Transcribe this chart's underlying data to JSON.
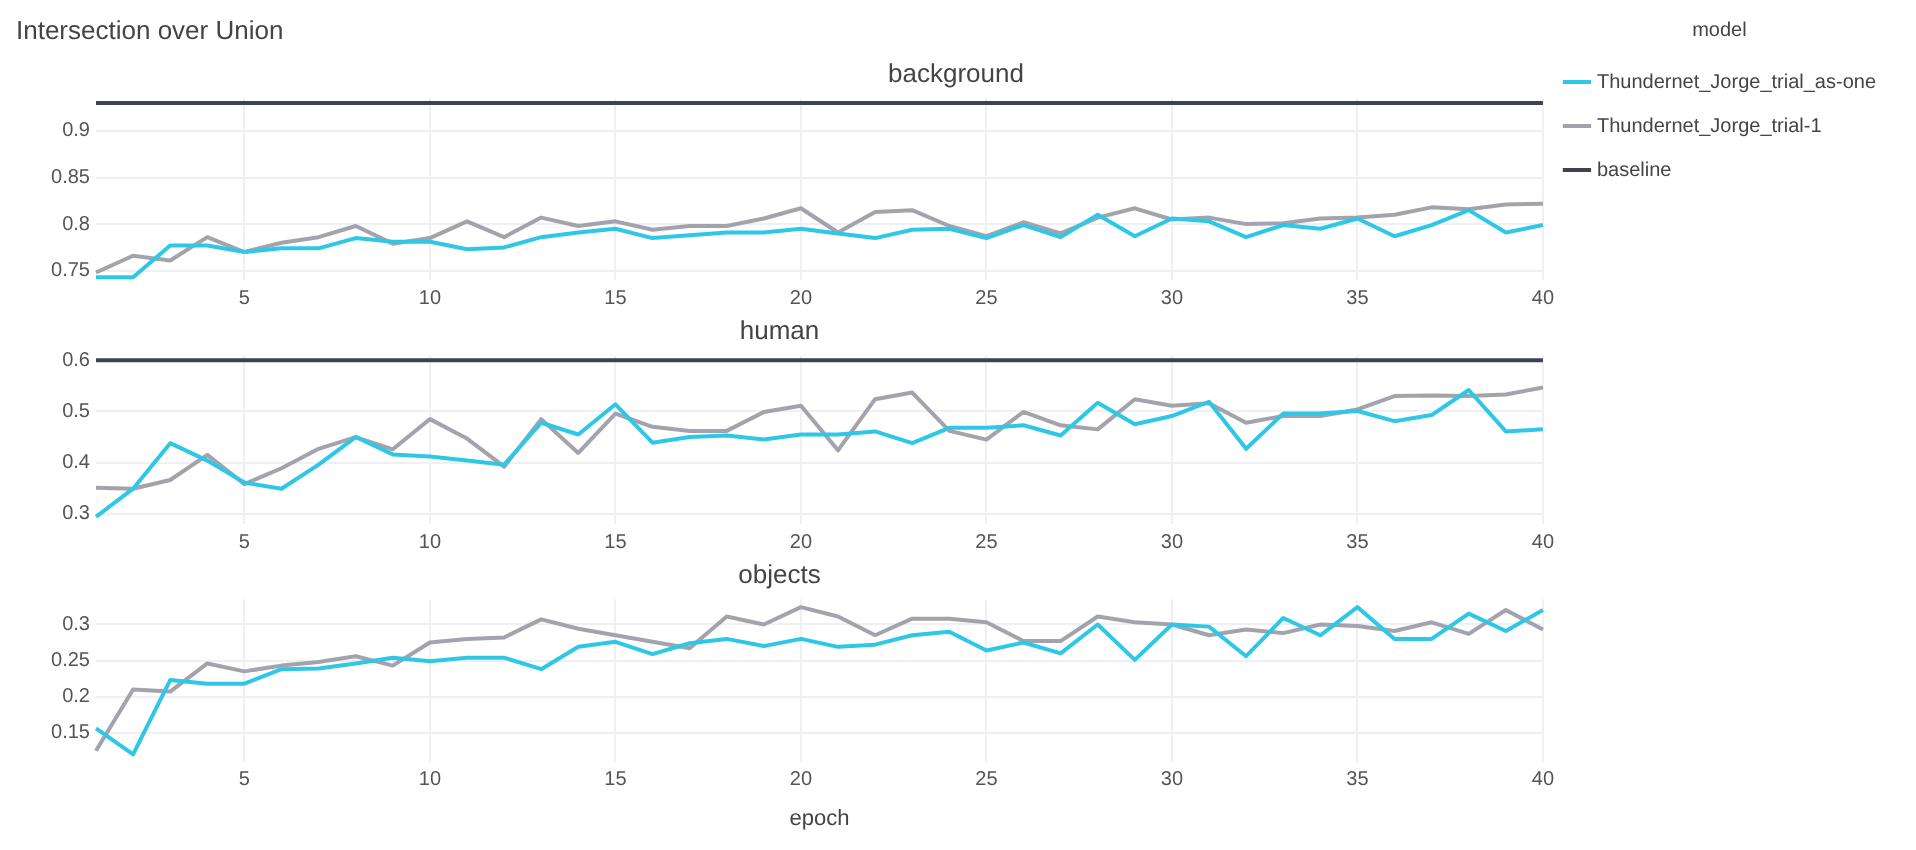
{
  "chart_data": [
    {
      "type": "line",
      "title": "Intersection over Union",
      "subtitle": "background",
      "legend": "top right",
      "legend_title": "model",
      "grid": true,
      "x": [
        1,
        2,
        3,
        4,
        5,
        6,
        7,
        8,
        9,
        10,
        11,
        12,
        13,
        14,
        15,
        16,
        17,
        18,
        19,
        20,
        21,
        22,
        23,
        24,
        25,
        26,
        27,
        28,
        29,
        30,
        31,
        32,
        33,
        34,
        35,
        36,
        37,
        38,
        39,
        40
      ],
      "xlim": [
        1,
        40
      ],
      "xticks": [
        5,
        10,
        15,
        20,
        25,
        30,
        35,
        40
      ],
      "ylim": [
        0.74,
        0.935
      ],
      "yticks": [
        0.75,
        0.8,
        0.85,
        0.9
      ],
      "series": [
        {
          "name": "Thundernet_Jorge_trial_as-one",
          "color": "#2ec8e6",
          "values": [
            0.743,
            0.743,
            0.777,
            0.777,
            0.77,
            0.774,
            0.774,
            0.785,
            0.781,
            0.781,
            0.773,
            0.775,
            0.786,
            0.791,
            0.795,
            0.785,
            0.788,
            0.791,
            0.791,
            0.795,
            0.79,
            0.785,
            0.794,
            0.795,
            0.785,
            0.799,
            0.786,
            0.81,
            0.787,
            0.806,
            0.803,
            0.786,
            0.799,
            0.795,
            0.806,
            0.787,
            0.799,
            0.815,
            0.791,
            0.799
          ]
        },
        {
          "name": "Thundernet_Jorge_trial-1",
          "color": "#a3a3ad",
          "values": [
            0.748,
            0.766,
            0.761,
            0.786,
            0.77,
            0.78,
            0.786,
            0.798,
            0.779,
            0.785,
            0.803,
            0.786,
            0.807,
            0.798,
            0.803,
            0.794,
            0.798,
            0.798,
            0.806,
            0.817,
            0.791,
            0.813,
            0.815,
            0.798,
            0.787,
            0.802,
            0.79,
            0.807,
            0.817,
            0.805,
            0.807,
            0.8,
            0.801,
            0.806,
            0.807,
            0.81,
            0.818,
            0.816,
            0.821,
            0.822
          ]
        },
        {
          "name": "baseline",
          "color": "#3d4350",
          "values": [
            0.93,
            0.93,
            0.93,
            0.93,
            0.93,
            0.93,
            0.93,
            0.93,
            0.93,
            0.93,
            0.93,
            0.93,
            0.93,
            0.93,
            0.93,
            0.93,
            0.93,
            0.93,
            0.93,
            0.93,
            0.93,
            0.93,
            0.93,
            0.93,
            0.93,
            0.93,
            0.93,
            0.93,
            0.93,
            0.93,
            0.93,
            0.93,
            0.93,
            0.93,
            0.93,
            0.93,
            0.93,
            0.93,
            0.93,
            0.93
          ]
        }
      ]
    },
    {
      "type": "line",
      "subtitle": "human",
      "grid": true,
      "x": [
        1,
        2,
        3,
        4,
        5,
        6,
        7,
        8,
        9,
        10,
        11,
        12,
        13,
        14,
        15,
        16,
        17,
        18,
        19,
        20,
        21,
        22,
        23,
        24,
        25,
        26,
        27,
        28,
        29,
        30,
        31,
        32,
        33,
        34,
        35,
        36,
        37,
        38,
        39,
        40
      ],
      "xlim": [
        1,
        40
      ],
      "xticks": [
        5,
        10,
        15,
        20,
        25,
        30,
        35,
        40
      ],
      "ylim": [
        0.28,
        0.61
      ],
      "yticks": [
        0.3,
        0.4,
        0.5,
        0.6
      ],
      "series": [
        {
          "color": "#2ec8e6",
          "values": [
            0.294,
            0.349,
            0.438,
            0.404,
            0.361,
            0.349,
            0.396,
            0.45,
            0.416,
            0.412,
            0.404,
            0.396,
            0.478,
            0.455,
            0.514,
            0.439,
            0.45,
            0.453,
            0.445,
            0.455,
            0.455,
            0.461,
            0.438,
            0.468,
            0.468,
            0.473,
            0.453,
            0.517,
            0.475,
            0.491,
            0.519,
            0.427,
            0.496,
            0.496,
            0.501,
            0.481,
            0.493,
            0.542,
            0.461,
            0.465
          ]
        },
        {
          "color": "#a3a3ad",
          "values": [
            0.351,
            0.349,
            0.366,
            0.415,
            0.358,
            0.389,
            0.427,
            0.45,
            0.426,
            0.485,
            0.447,
            0.392,
            0.485,
            0.419,
            0.496,
            0.47,
            0.462,
            0.462,
            0.499,
            0.511,
            0.424,
            0.524,
            0.537,
            0.462,
            0.445,
            0.499,
            0.473,
            0.465,
            0.524,
            0.511,
            0.516,
            0.478,
            0.491,
            0.491,
            0.504,
            0.53,
            0.531,
            0.53,
            0.533,
            0.547
          ]
        },
        {
          "color": "#3d4350",
          "values": [
            0.6,
            0.6,
            0.6,
            0.6,
            0.6,
            0.6,
            0.6,
            0.6,
            0.6,
            0.6,
            0.6,
            0.6,
            0.6,
            0.6,
            0.6,
            0.6,
            0.6,
            0.6,
            0.6,
            0.6,
            0.6,
            0.6,
            0.6,
            0.6,
            0.6,
            0.6,
            0.6,
            0.6,
            0.6,
            0.6,
            0.6,
            0.6,
            0.6,
            0.6,
            0.6,
            0.6,
            0.6,
            0.6,
            0.6,
            0.6
          ]
        }
      ]
    },
    {
      "type": "line",
      "subtitle": "objects",
      "xlabel": "epoch",
      "grid": true,
      "x": [
        1,
        2,
        3,
        4,
        5,
        6,
        7,
        8,
        9,
        10,
        11,
        12,
        13,
        14,
        15,
        16,
        17,
        18,
        19,
        20,
        21,
        22,
        23,
        24,
        25,
        26,
        27,
        28,
        29,
        30,
        31,
        32,
        33,
        34,
        35,
        36,
        37,
        38,
        39,
        40
      ],
      "xlim": [
        1,
        40
      ],
      "xticks": [
        5,
        10,
        15,
        20,
        25,
        30,
        35,
        40
      ],
      "ylim": [
        0.11,
        0.335
      ],
      "yticks": [
        0.15,
        0.2,
        0.25,
        0.3
      ],
      "series": [
        {
          "color": "#2ec8e6",
          "values": [
            0.156,
            0.12,
            0.223,
            0.218,
            0.218,
            0.238,
            0.239,
            0.246,
            0.254,
            0.249,
            0.254,
            0.254,
            0.238,
            0.269,
            0.276,
            0.259,
            0.274,
            0.28,
            0.27,
            0.28,
            0.269,
            0.272,
            0.285,
            0.29,
            0.264,
            0.275,
            0.26,
            0.3,
            0.251,
            0.3,
            0.297,
            0.256,
            0.309,
            0.285,
            0.324,
            0.28,
            0.28,
            0.315,
            0.291,
            0.32
          ]
        },
        {
          "color": "#a3a3ad",
          "values": [
            0.125,
            0.21,
            0.207,
            0.246,
            0.235,
            0.243,
            0.248,
            0.256,
            0.243,
            0.275,
            0.28,
            0.282,
            0.307,
            0.294,
            0.285,
            0.276,
            0.267,
            0.311,
            0.3,
            0.324,
            0.311,
            0.285,
            0.308,
            0.308,
            0.303,
            0.277,
            0.277,
            0.311,
            0.303,
            0.3,
            0.285,
            0.293,
            0.288,
            0.3,
            0.298,
            0.291,
            0.303,
            0.287,
            0.32,
            0.293
          ]
        }
      ]
    }
  ]
}
